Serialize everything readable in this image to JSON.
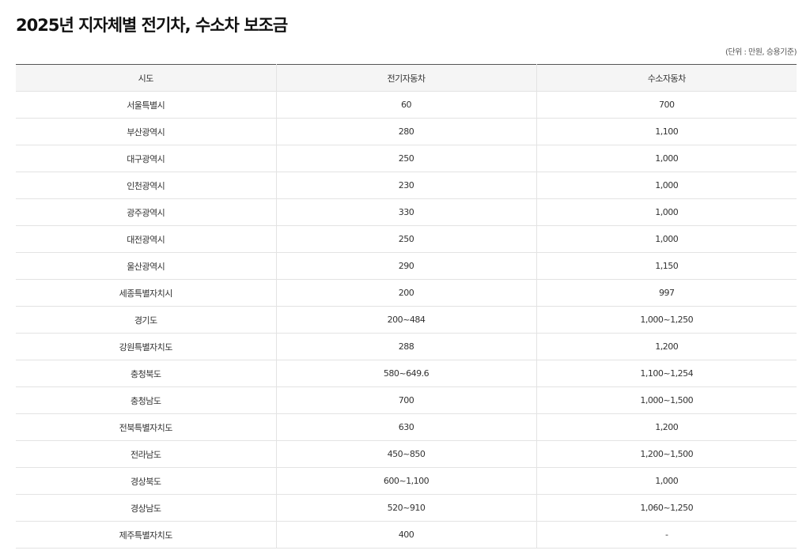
{
  "title": "2025년 지자체별 전기차, 수소차 보조금",
  "unit_note": "(단위 : 만원, 승용기준)",
  "table": {
    "headers": [
      "시도",
      "전기자동차",
      "수소자동차"
    ],
    "rows": [
      [
        "서울특별시",
        "60",
        "700"
      ],
      [
        "부산광역시",
        "280",
        "1,100"
      ],
      [
        "대구광역시",
        "250",
        "1,000"
      ],
      [
        "인천광역시",
        "230",
        "1,000"
      ],
      [
        "광주광역시",
        "330",
        "1,000"
      ],
      [
        "대전광역시",
        "250",
        "1,000"
      ],
      [
        "울산광역시",
        "290",
        "1,150"
      ],
      [
        "세종특별자치시",
        "200",
        "997"
      ],
      [
        "경기도",
        "200~484",
        "1,000~1,250"
      ],
      [
        "강원특별자치도",
        "288",
        "1,200"
      ],
      [
        "충청북도",
        "580~649.6",
        "1,100~1,254"
      ],
      [
        "충청남도",
        "700",
        "1,000~1,500"
      ],
      [
        "전북특별자치도",
        "630",
        "1,200"
      ],
      [
        "전라남도",
        "450~850",
        "1,200~1,500"
      ],
      [
        "경상북도",
        "600~1,100",
        "1,000"
      ],
      [
        "경상남도",
        "520~910",
        "1,060~1,250"
      ],
      [
        "제주특별자치도",
        "400",
        "-"
      ]
    ]
  }
}
